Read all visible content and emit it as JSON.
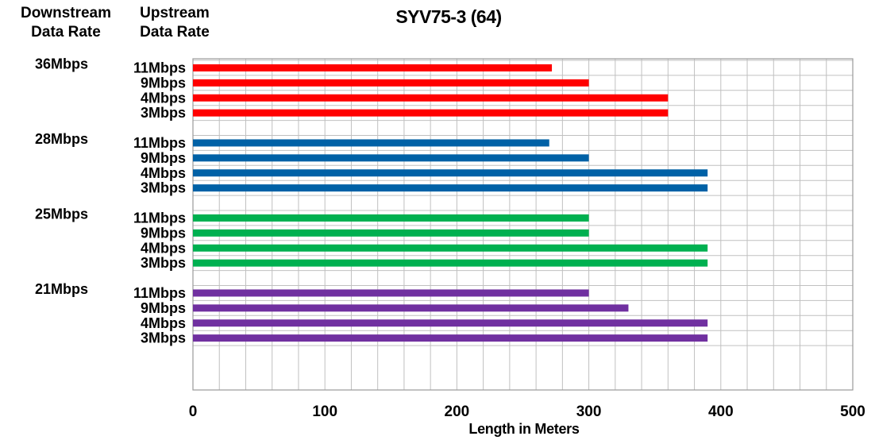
{
  "headers": {
    "downstream": [
      "Downstream",
      "Data Rate"
    ],
    "upstream": [
      "Upstream",
      "Data Rate"
    ]
  },
  "chart_data": {
    "type": "bar",
    "orientation": "horizontal",
    "title": "SYV75-3 (64)",
    "xlabel": "Length in Meters",
    "ylabel": "",
    "xlim": [
      0,
      500
    ],
    "x_ticks": [
      0,
      100,
      200,
      300,
      400,
      500
    ],
    "grid": true,
    "legend": "none",
    "groups": [
      {
        "downstream": "36Mbps",
        "color": "#ff0000",
        "bars": [
          {
            "upstream": "11Mbps",
            "value": 272
          },
          {
            "upstream": "9Mbps",
            "value": 300
          },
          {
            "upstream": "4Mbps",
            "value": 360
          },
          {
            "upstream": "3Mbps",
            "value": 360
          }
        ]
      },
      {
        "downstream": "28Mbps",
        "color": "#0061a6",
        "bars": [
          {
            "upstream": "11Mbps",
            "value": 270
          },
          {
            "upstream": "9Mbps",
            "value": 300
          },
          {
            "upstream": "4Mbps",
            "value": 390
          },
          {
            "upstream": "3Mbps",
            "value": 390
          }
        ]
      },
      {
        "downstream": "25Mbps",
        "color": "#00b050",
        "bars": [
          {
            "upstream": "11Mbps",
            "value": 300
          },
          {
            "upstream": "9Mbps",
            "value": 300
          },
          {
            "upstream": "4Mbps",
            "value": 390
          },
          {
            "upstream": "3Mbps",
            "value": 390
          }
        ]
      },
      {
        "downstream": "21Mbps",
        "color": "#7030a0",
        "bars": [
          {
            "upstream": "11Mbps",
            "value": 300
          },
          {
            "upstream": "9Mbps",
            "value": 330
          },
          {
            "upstream": "4Mbps",
            "value": 390
          },
          {
            "upstream": "3Mbps",
            "value": 390
          }
        ]
      }
    ]
  }
}
